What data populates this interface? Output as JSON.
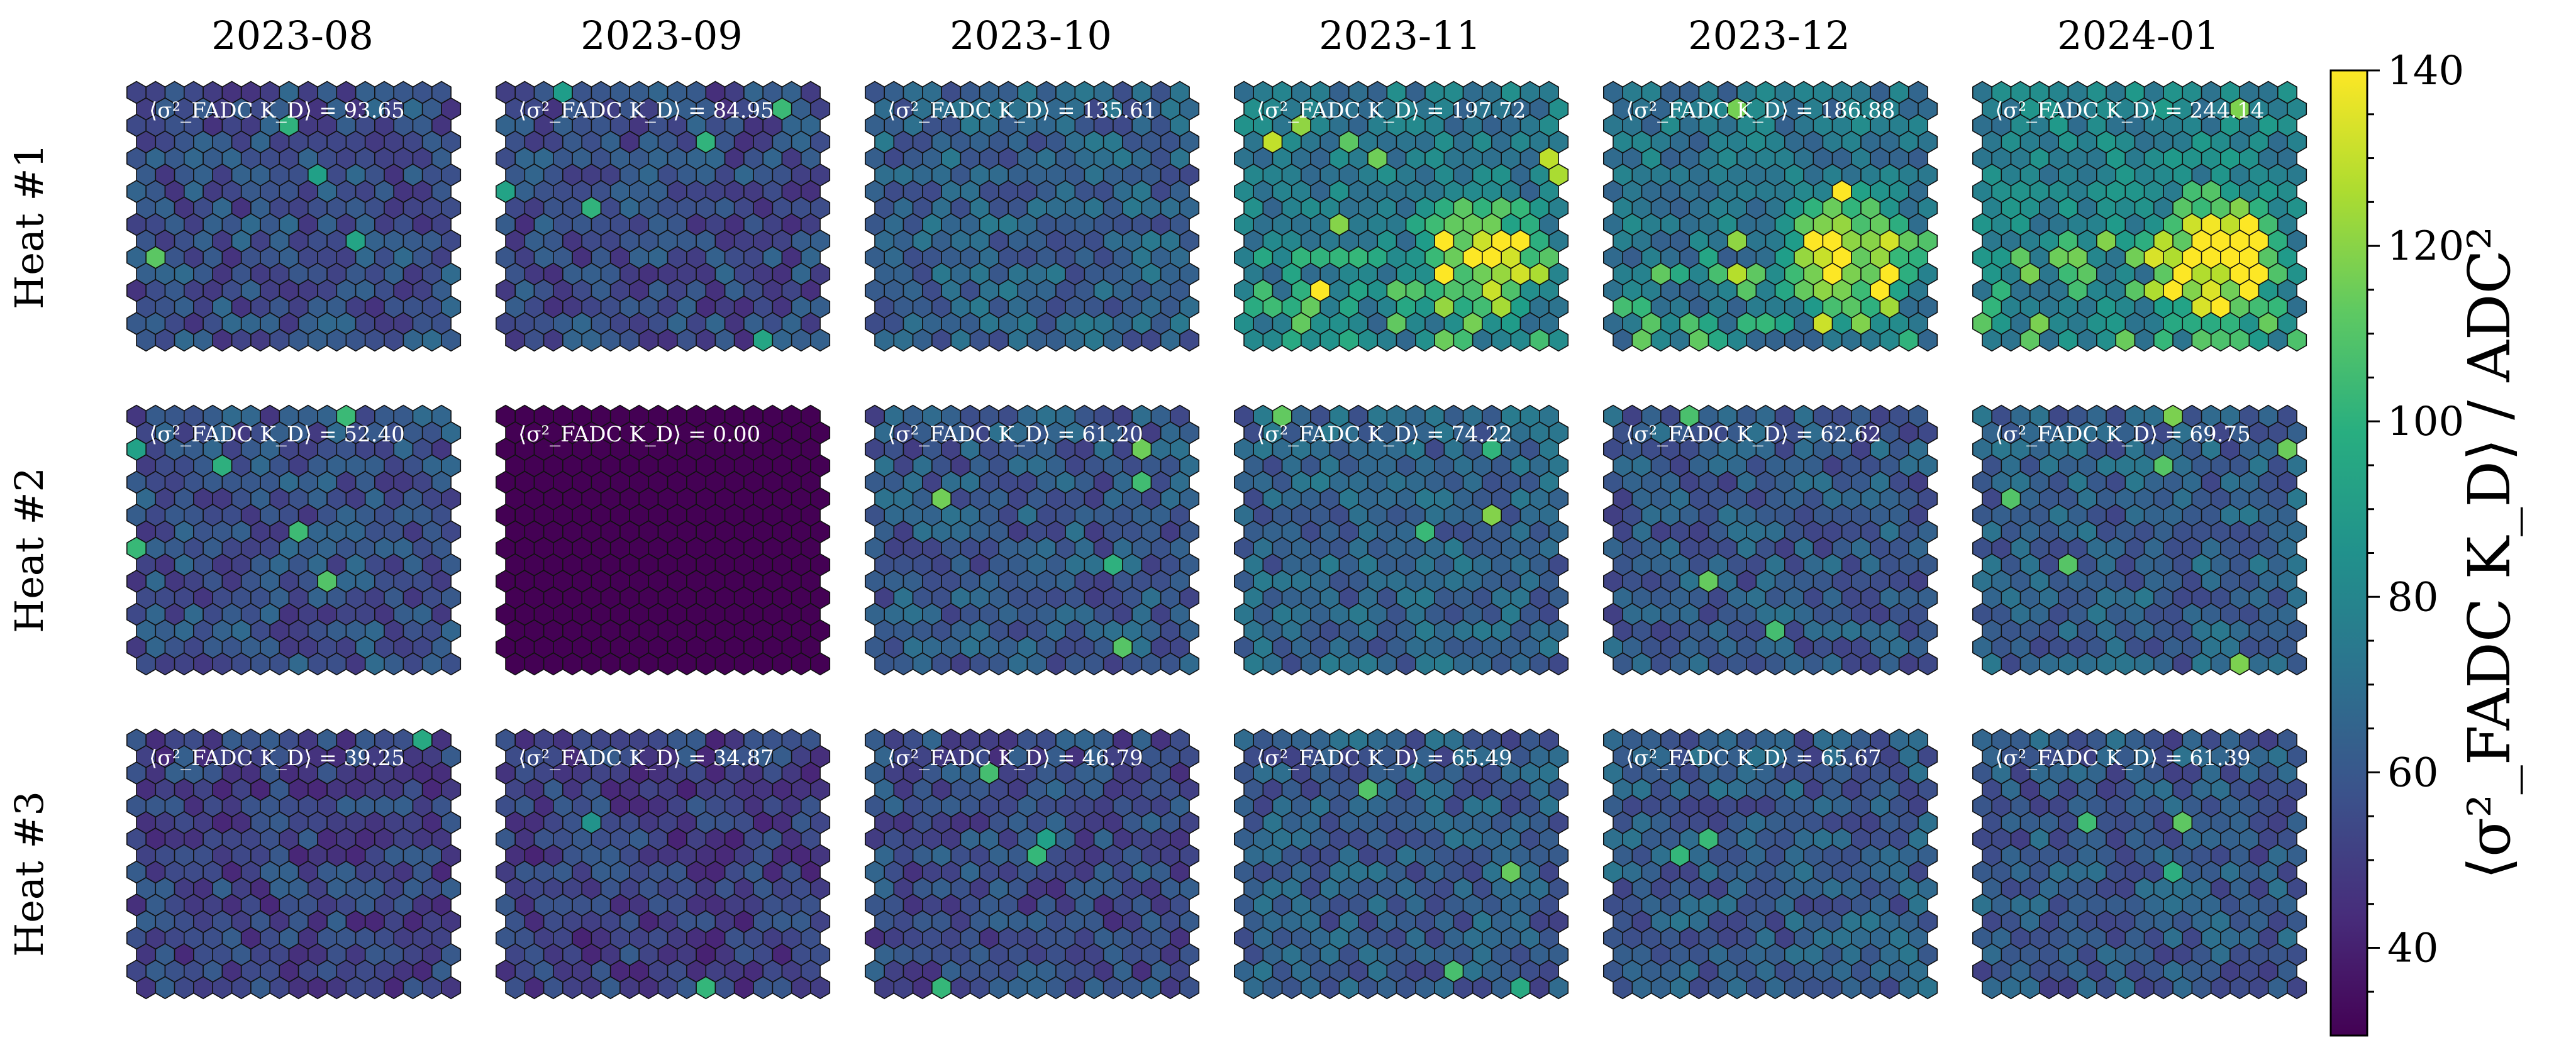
{
  "figure": {
    "columns": [
      "2023-08",
      "2023-09",
      "2023-10",
      "2023-11",
      "2023-12",
      "2024-01"
    ],
    "rows": [
      "Heat #1",
      "Heat #2",
      "Heat #3"
    ]
  },
  "chart_data": {
    "type": "heatmap",
    "title": "",
    "colorbar": {
      "label": "⟨σ²_FADC K_D⟩ / ADC²",
      "colormap": "viridis",
      "range": [
        30,
        140
      ],
      "ticks": [
        40,
        60,
        80,
        100,
        120,
        140
      ]
    },
    "grid": "hexagonal detector pixel map, approx. 16 rows × 17 columns per panel",
    "panels": [
      {
        "row": "Heat #1",
        "column": "2023-08",
        "annotation": "⟨σ²_FADC K_D⟩ = 93.65",
        "mean": 93.65
      },
      {
        "row": "Heat #1",
        "column": "2023-09",
        "annotation": "⟨σ²_FADC K_D⟩ = 84.95",
        "mean": 84.95
      },
      {
        "row": "Heat #1",
        "column": "2023-10",
        "annotation": "⟨σ²_FADC K_D⟩ = 135.61",
        "mean": 135.61
      },
      {
        "row": "Heat #1",
        "column": "2023-11",
        "annotation": "⟨σ²_FADC K_D⟩ = 197.72",
        "mean": 197.72
      },
      {
        "row": "Heat #1",
        "column": "2023-12",
        "annotation": "⟨σ²_FADC K_D⟩ = 186.88",
        "mean": 186.88
      },
      {
        "row": "Heat #1",
        "column": "2024-01",
        "annotation": "⟨σ²_FADC K_D⟩ = 244.14",
        "mean": 244.14
      },
      {
        "row": "Heat #2",
        "column": "2023-08",
        "annotation": "⟨σ²_FADC K_D⟩ = 52.40",
        "mean": 52.4
      },
      {
        "row": "Heat #2",
        "column": "2023-09",
        "annotation": "⟨σ²_FADC K_D⟩ = 0.00",
        "mean": 0.0
      },
      {
        "row": "Heat #2",
        "column": "2023-10",
        "annotation": "⟨σ²_FADC K_D⟩ = 61.20",
        "mean": 61.2
      },
      {
        "row": "Heat #2",
        "column": "2023-11",
        "annotation": "⟨σ²_FADC K_D⟩ = 74.22",
        "mean": 74.22
      },
      {
        "row": "Heat #2",
        "column": "2023-12",
        "annotation": "⟨σ²_FADC K_D⟩ = 62.62",
        "mean": 62.62
      },
      {
        "row": "Heat #2",
        "column": "2024-01",
        "annotation": "⟨σ²_FADC K_D⟩ = 69.75",
        "mean": 69.75
      },
      {
        "row": "Heat #3",
        "column": "2023-08",
        "annotation": "⟨σ²_FADC K_D⟩ = 39.25",
        "mean": 39.25
      },
      {
        "row": "Heat #3",
        "column": "2023-09",
        "annotation": "⟨σ²_FADC K_D⟩ = 34.87",
        "mean": 34.87
      },
      {
        "row": "Heat #3",
        "column": "2023-10",
        "annotation": "⟨σ²_FADC K_D⟩ = 46.79",
        "mean": 46.79
      },
      {
        "row": "Heat #3",
        "column": "2023-11",
        "annotation": "⟨σ²_FADC K_D⟩ = 65.49",
        "mean": 65.49
      },
      {
        "row": "Heat #3",
        "column": "2023-12",
        "annotation": "⟨σ²_FADC K_D⟩ = 65.67",
        "mean": 65.67
      },
      {
        "row": "Heat #3",
        "column": "2024-01",
        "annotation": "⟨σ²_FADC K_D⟩ = 61.39",
        "mean": 61.39
      }
    ]
  }
}
